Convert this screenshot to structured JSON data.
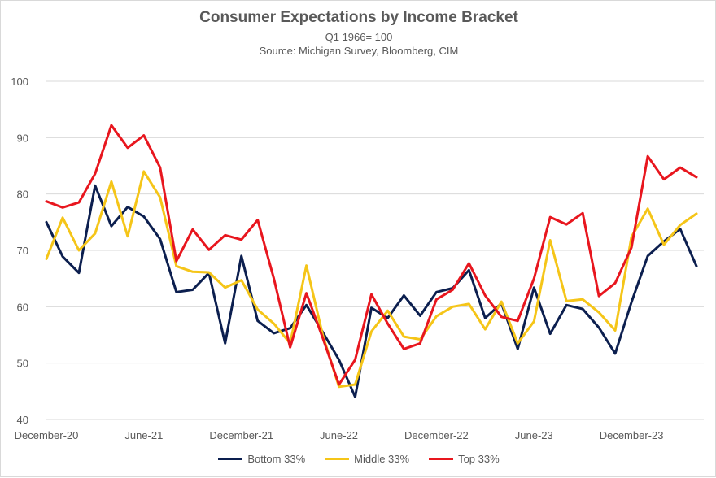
{
  "chart_data": {
    "type": "line",
    "title": "Consumer Expectations by Income Bracket",
    "subtitle": [
      "Q1 1966= 100",
      "Source: Michigan Survey, Bloomberg, CIM"
    ],
    "xlabel": "",
    "ylabel": "",
    "ylim": [
      40,
      100
    ],
    "yticks": [
      40,
      50,
      60,
      70,
      80,
      90,
      100
    ],
    "grid": true,
    "legend_position": "bottom",
    "x": [
      "2020-12",
      "2021-01",
      "2021-02",
      "2021-03",
      "2021-04",
      "2021-05",
      "2021-06",
      "2021-07",
      "2021-08",
      "2021-09",
      "2021-10",
      "2021-11",
      "2021-12",
      "2022-01",
      "2022-02",
      "2022-03",
      "2022-04",
      "2022-05",
      "2022-06",
      "2022-07",
      "2022-08",
      "2022-09",
      "2022-10",
      "2022-11",
      "2022-12",
      "2023-01",
      "2023-02",
      "2023-03",
      "2023-04",
      "2023-05",
      "2023-06",
      "2023-07",
      "2023-08",
      "2023-09",
      "2023-10",
      "2023-11",
      "2023-12",
      "2024-01",
      "2024-02",
      "2024-03",
      "2024-04"
    ],
    "xticks": [
      {
        "index": 0,
        "label": "December-20"
      },
      {
        "index": 6,
        "label": "June-21"
      },
      {
        "index": 12,
        "label": "December-21"
      },
      {
        "index": 18,
        "label": "June-22"
      },
      {
        "index": 24,
        "label": "December-22"
      },
      {
        "index": 30,
        "label": "June-23"
      },
      {
        "index": 36,
        "label": "December-23"
      }
    ],
    "series": [
      {
        "name": "Bottom 33%",
        "color": "#0c1f4f",
        "values": [
          75.0,
          68.9,
          66.0,
          81.5,
          74.3,
          77.7,
          76.0,
          72.0,
          62.6,
          63.0,
          66.0,
          53.5,
          69.0,
          57.5,
          55.3,
          56.2,
          60.3,
          55.5,
          50.6,
          44.0,
          59.8,
          58.0,
          62.0,
          58.4,
          62.6,
          63.3,
          66.5,
          58.0,
          60.6,
          52.5,
          63.4,
          55.2,
          60.3,
          59.6,
          56.3,
          51.7,
          60.8,
          69.0,
          71.6,
          73.8,
          67.2
        ]
      },
      {
        "name": "Middle 33%",
        "color": "#f5c518",
        "values": [
          68.5,
          75.8,
          70.0,
          73.0,
          82.2,
          72.5,
          84.0,
          79.4,
          67.2,
          66.2,
          66.1,
          63.4,
          64.7,
          59.5,
          57.0,
          53.5,
          67.3,
          55.0,
          45.8,
          46.2,
          55.6,
          59.3,
          54.7,
          54.2,
          58.3,
          60.0,
          60.5,
          56.0,
          60.9,
          53.5,
          57.4,
          71.8,
          61.0,
          61.3,
          59.0,
          55.8,
          72.4,
          77.4,
          71.0,
          74.5,
          76.5
        ]
      },
      {
        "name": "Top 33%",
        "color": "#e8161e",
        "values": [
          78.7,
          77.6,
          78.5,
          83.6,
          92.2,
          88.2,
          90.4,
          84.7,
          68.1,
          73.7,
          70.1,
          72.7,
          71.9,
          75.4,
          65.0,
          52.8,
          62.4,
          54.5,
          46.2,
          50.6,
          62.2,
          57.0,
          52.5,
          53.5,
          61.3,
          63.0,
          67.7,
          62.0,
          58.2,
          57.5,
          65.0,
          75.9,
          74.6,
          76.6,
          61.9,
          64.2,
          70.5,
          86.7,
          82.6,
          84.7,
          83.0
        ]
      }
    ]
  }
}
